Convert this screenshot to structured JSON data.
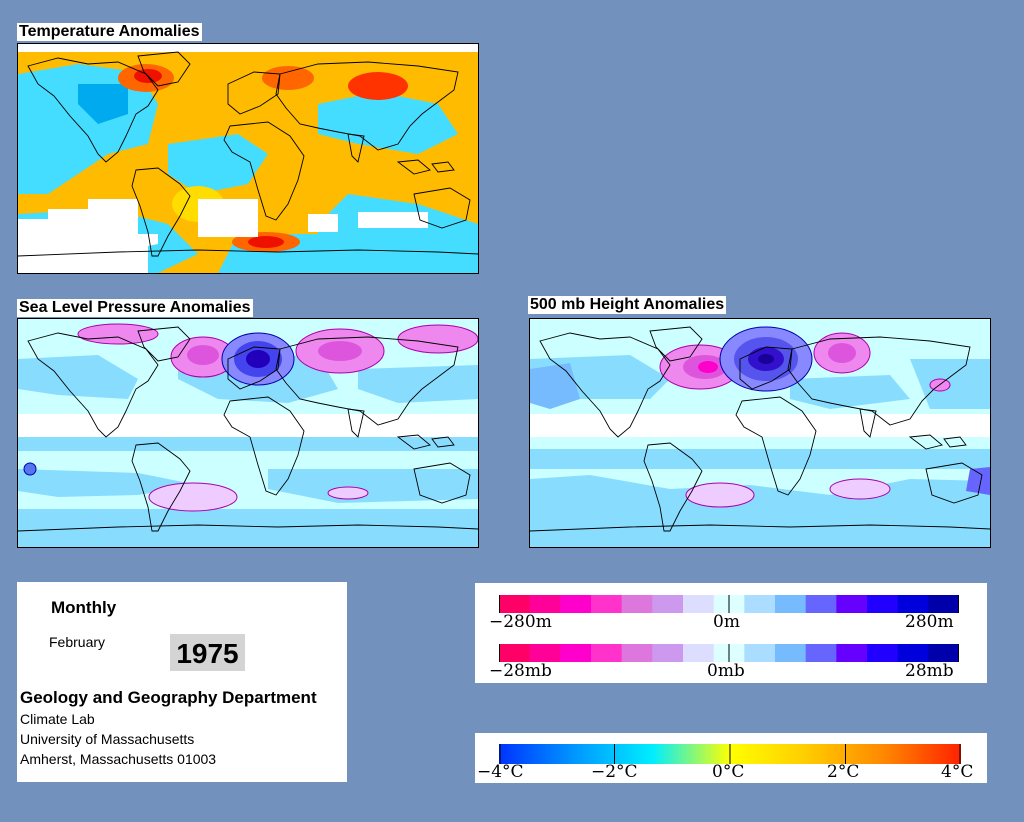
{
  "panels": {
    "temperature": {
      "title": "Temperature Anomalies"
    },
    "slp": {
      "title": "Sea Level Pressure Anomalies"
    },
    "height": {
      "title": "500 mb Height Anomalies"
    }
  },
  "info": {
    "period": "Monthly",
    "month": "February",
    "year": "1975",
    "department": "Geology and Geography Department",
    "lines": [
      "Climate Lab",
      "University of Massachusetts",
      "Amherst, Massachusetts 01003"
    ]
  },
  "legend_height": {
    "left": "−280m",
    "center": "0m",
    "right": "280m",
    "colors": [
      "#ff0066",
      "#ff0099",
      "#ff00cc",
      "#ff33cc",
      "#dd77dd",
      "#cc99ee",
      "#ddddff",
      "#ddffff",
      "#aaddff",
      "#77bbff",
      "#6666ff",
      "#6600ff",
      "#2200ff",
      "#0000dd",
      "#0000aa"
    ]
  },
  "legend_pressure": {
    "left": "−28mb",
    "center": "0mb",
    "right": "28mb",
    "colors": [
      "#ff0066",
      "#ff0099",
      "#ff00cc",
      "#ff33cc",
      "#dd77dd",
      "#cc99ee",
      "#ddddff",
      "#ddffff",
      "#aaddff",
      "#77bbff",
      "#6666ff",
      "#6600ff",
      "#2200ff",
      "#0000dd",
      "#0000aa"
    ]
  },
  "legend_temperature": {
    "labels": [
      "−4°C",
      "−2°C",
      "0°C",
      "2°C",
      "4°C"
    ],
    "gradient": [
      "#0033ff",
      "#0099ff",
      "#00eeff",
      "#ffff00",
      "#ffcc00",
      "#ff8800",
      "#ff2200"
    ]
  },
  "colors": {
    "background": "#7391bd",
    "slp_base": "#ccffff",
    "slp_negative": "#88ddff",
    "slp_low": "#3355dd",
    "slp_high": "#ee88ee",
    "temp_cold": "#00aaee",
    "temp_cool": "#44ddff",
    "temp_warm": "#ffbb00",
    "temp_hot": "#ee1100"
  }
}
